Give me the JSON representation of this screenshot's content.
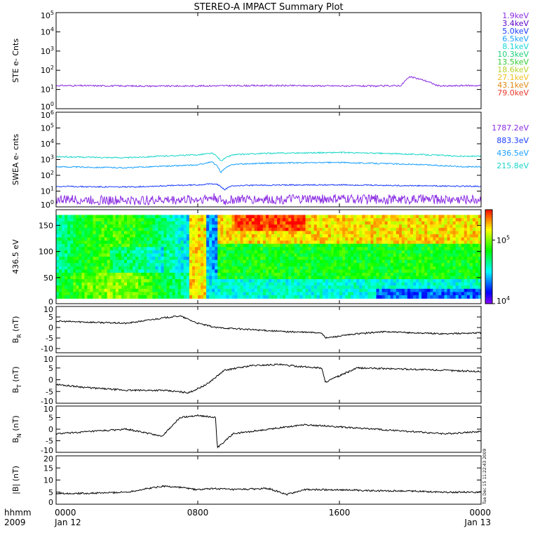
{
  "chart_data": {
    "title": "STEREO-A IMPACT Summary Plot",
    "x_ticks": [
      {
        "time": "0000",
        "date": "Jan 12"
      },
      {
        "time": "0800",
        "date": ""
      },
      {
        "time": "1600",
        "date": ""
      },
      {
        "time": "0000",
        "date": "Jan 13"
      }
    ],
    "x_axis_label": {
      "line1": "hhmm",
      "line2": "2009"
    },
    "timestamp": "Tue Dec 15 11:22:43 2009",
    "panels": [
      {
        "id": "ste",
        "type": "line",
        "ylabel": "STE e- Cnts",
        "yscale": "log",
        "ylim": [
          1,
          100000
        ],
        "y_ticks": [
          {
            "base": "10",
            "exp": "0"
          },
          {
            "base": "10",
            "exp": "1"
          },
          {
            "base": "10",
            "exp": "2"
          },
          {
            "base": "10",
            "exp": "3"
          },
          {
            "base": "10",
            "exp": "4"
          },
          {
            "base": "10",
            "exp": "5"
          }
        ],
        "legend": [
          {
            "label": "1.9keV",
            "color": "#8a2be2"
          },
          {
            "label": "3.4keV",
            "color": "#5a00c8"
          },
          {
            "label": "5.0keV",
            "color": "#1a3cff"
          },
          {
            "label": "6.5keV",
            "color": "#1aa0ff"
          },
          {
            "label": "8.1keV",
            "color": "#19d6d6"
          },
          {
            "label": "10.3keV",
            "color": "#1fd07a"
          },
          {
            "label": "13.5keV",
            "color": "#33cc33"
          },
          {
            "label": "18.6keV",
            "color": "#b8d12e"
          },
          {
            "label": "27.1keV",
            "color": "#f0c020"
          },
          {
            "label": "43.1keV",
            "color": "#e08a10"
          },
          {
            "label": "79.0keV",
            "color": "#e83a2a"
          }
        ],
        "series": [
          {
            "label_ref": 0,
            "color": "#8a2be2",
            "x_hours": [
              0,
              6,
              12,
              18,
              19.5,
              20,
              21.5,
              22,
              23,
              24
            ],
            "y": [
              16,
              15,
              16,
              15,
              16,
              45,
              16,
              15,
              16,
              16
            ]
          }
        ]
      },
      {
        "id": "swea",
        "type": "line",
        "ylabel": "SWEA e- cnts",
        "yscale": "log",
        "ylim": [
          1,
          1000000
        ],
        "y_ticks": [
          {
            "base": "10",
            "exp": "0"
          },
          {
            "base": "10",
            "exp": "1"
          },
          {
            "base": "10",
            "exp": "2"
          },
          {
            "base": "10",
            "exp": "3"
          },
          {
            "base": "10",
            "exp": "4"
          },
          {
            "base": "10",
            "exp": "5"
          },
          {
            "base": "10",
            "exp": "6"
          }
        ],
        "legend": [
          {
            "label": "1787.2eV",
            "color": "#8a2be2"
          },
          {
            "label": "883.3eV",
            "color": "#1a3cff"
          },
          {
            "label": "436.5eV",
            "color": "#1aa0ff"
          },
          {
            "label": "215.8eV",
            "color": "#19d6c8"
          }
        ],
        "series": [
          {
            "label": "215.8eV",
            "color": "#19d6c8",
            "x_hours": [
              0,
              4,
              8,
              8.8,
              9.3,
              10,
              12,
              16,
              20,
              23,
              24
            ],
            "y": [
              1500,
              1300,
              2000,
              2500,
              800,
              2000,
              2500,
              2800,
              2200,
              1600,
              1600
            ]
          },
          {
            "label": "436.5eV",
            "color": "#1aa0ff",
            "x_hours": [
              0,
              4,
              8,
              8.8,
              9.3,
              10,
              12,
              16,
              20,
              23,
              24
            ],
            "y": [
              350,
              300,
              450,
              700,
              150,
              500,
              600,
              650,
              500,
              350,
              350
            ]
          },
          {
            "label": "883.3eV",
            "color": "#1a3cff",
            "x_hours": [
              0,
              4,
              8,
              9,
              9.5,
              10,
              12,
              16,
              20,
              24
            ],
            "y": [
              20,
              18,
              25,
              30,
              12,
              22,
              24,
              25,
              22,
              20
            ]
          },
          {
            "label": "1787.2eV",
            "color": "#8a2be2",
            "x_hours": [
              0,
              4,
              8,
              9,
              9.5,
              10,
              12,
              16,
              20,
              24
            ],
            "y": [
              3,
              2.5,
              3,
              4,
              2,
              3,
              3,
              3.2,
              3,
              3
            ]
          }
        ]
      },
      {
        "id": "spectrogram",
        "type": "heatmap",
        "ylabel": "436.5 eV",
        "ylim": [
          0,
          180
        ],
        "y_ticks": [
          "0",
          "50",
          "100",
          "150"
        ],
        "colorbar": {
          "scale": "log",
          "range": [
            10000,
            300000
          ],
          "ticks": [
            {
              "base": "10",
              "exp": "4"
            },
            {
              "base": "10",
              "exp": "5"
            }
          ]
        }
      },
      {
        "id": "br",
        "type": "line",
        "ylabel": "B_R (nT)",
        "ylabel_main": "B",
        "ylabel_sub": "R",
        "ylabel_unit": " (nT)",
        "ylim": [
          -12,
          10
        ],
        "y_ticks": [
          "10",
          "5",
          "0",
          "-5",
          "-10"
        ],
        "series": [
          {
            "x_hours": [
              0,
              2,
              4,
              6,
              7,
              8,
              9,
              11,
              13,
              15,
              15.2,
              17,
              18.5,
              20,
              22,
              24
            ],
            "y": [
              3,
              2.5,
              2,
              4.5,
              5.5,
              2,
              0,
              -1,
              -2,
              -2.5,
              -5,
              -3,
              -2,
              -2.5,
              -3,
              -2.5
            ]
          }
        ]
      },
      {
        "id": "bt",
        "type": "line",
        "ylabel": "B_T (nT)",
        "ylabel_main": "B",
        "ylabel_sub": "T",
        "ylabel_unit": " (nT)",
        "ylim": [
          -10,
          10
        ],
        "y_ticks": [
          "10",
          "5",
          "0",
          "-5",
          "-10"
        ],
        "series": [
          {
            "x_hours": [
              0,
              2,
              4,
              6,
              7.5,
              8.5,
              9.5,
              11,
              12.5,
              14,
              15,
              15.2,
              17,
              20,
              22,
              24
            ],
            "y": [
              -2,
              -3.5,
              -4.5,
              -4.5,
              -5.5,
              -2,
              4,
              6,
              6.5,
              5.5,
              5,
              -1,
              5,
              4.5,
              4,
              3.5
            ]
          }
        ]
      },
      {
        "id": "bn",
        "type": "line",
        "ylabel": "B_N (nT)",
        "ylabel_main": "B",
        "ylabel_sub": "N",
        "ylabel_unit": " (nT)",
        "ylim": [
          -10,
          10
        ],
        "y_ticks": [
          "10",
          "5",
          "0",
          "-5",
          "-10"
        ],
        "series": [
          {
            "x_hours": [
              0,
              2,
              4,
              6,
              7,
              8,
              9,
              9.1,
              10,
              12,
              14,
              16,
              18,
              20,
              22,
              24
            ],
            "y": [
              -2,
              -1,
              0,
              -3,
              5,
              6,
              5,
              -8,
              -2,
              0,
              2,
              1,
              0,
              -1,
              -2,
              -1
            ]
          }
        ]
      },
      {
        "id": "bmag",
        "type": "line",
        "ylabel": "|B| (nT)",
        "ylim": [
          0,
          20
        ],
        "y_ticks": [
          "20",
          "15",
          "10",
          "5",
          "0"
        ],
        "series": [
          {
            "x_hours": [
              0,
              2,
              4,
              6,
              7,
              8,
              9,
              10,
              12,
              13,
              14,
              16,
              18,
              20,
              22,
              24
            ],
            "y": [
              4.5,
              4.5,
              5,
              7.5,
              7,
              6,
              6.5,
              6,
              6.5,
              4,
              6,
              6,
              5.5,
              5.5,
              5,
              5
            ]
          }
        ]
      }
    ]
  }
}
